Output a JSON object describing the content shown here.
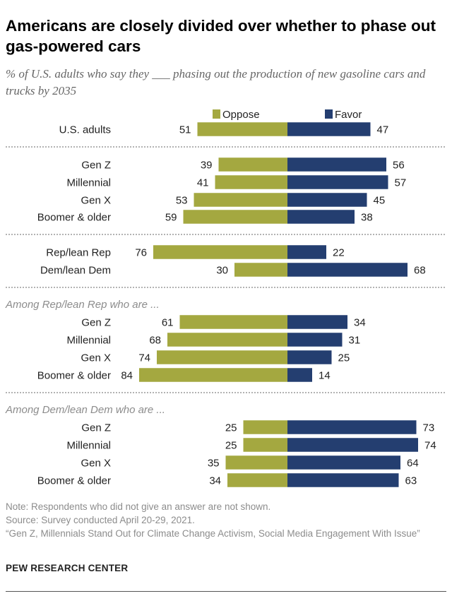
{
  "title": "Americans are closely divided over whether to phase out gas-powered cars",
  "subtitle": "% of U.S. adults who say they ___ phasing out the production of new gasoline cars and trucks by 2035",
  "colors": {
    "oppose": "#a4a840",
    "favor": "#243e70"
  },
  "chart_data": {
    "type": "bar",
    "orientation": "horizontal-diverging",
    "legend": {
      "position": "top",
      "entries": [
        "Oppose",
        "Favor"
      ]
    },
    "series": [
      {
        "name": "Oppose",
        "color": "#a4a840"
      },
      {
        "name": "Favor",
        "color": "#243e70"
      }
    ],
    "groups": [
      {
        "header": "",
        "rows": [
          {
            "label": "U.S. adults",
            "oppose": 51,
            "favor": 47
          }
        ]
      },
      {
        "header": "",
        "rows": [
          {
            "label": "Gen Z",
            "oppose": 39,
            "favor": 56
          },
          {
            "label": "Millennial",
            "oppose": 41,
            "favor": 57
          },
          {
            "label": "Gen X",
            "oppose": 53,
            "favor": 45
          },
          {
            "label": "Boomer & older",
            "oppose": 59,
            "favor": 38
          }
        ]
      },
      {
        "header": "",
        "rows": [
          {
            "label": "Rep/lean Rep",
            "oppose": 76,
            "favor": 22
          },
          {
            "label": "Dem/lean Dem",
            "oppose": 30,
            "favor": 68
          }
        ]
      },
      {
        "header": "Among Rep/lean Rep who are ...",
        "rows": [
          {
            "label": "Gen Z",
            "oppose": 61,
            "favor": 34
          },
          {
            "label": "Millennial",
            "oppose": 68,
            "favor": 31
          },
          {
            "label": "Gen X",
            "oppose": 74,
            "favor": 25
          },
          {
            "label": "Boomer & older",
            "oppose": 84,
            "favor": 14
          }
        ]
      },
      {
        "header": "Among Dem/lean Dem who are ...",
        "rows": [
          {
            "label": "Gen Z",
            "oppose": 25,
            "favor": 73
          },
          {
            "label": "Millennial",
            "oppose": 25,
            "favor": 74
          },
          {
            "label": "Gen X",
            "oppose": 35,
            "favor": 64
          },
          {
            "label": "Boomer & older",
            "oppose": 34,
            "favor": 63
          }
        ]
      }
    ]
  },
  "footer": {
    "note": "Note: Respondents who did not give an answer are not shown.",
    "source": "Source: Survey conducted April 20-29, 2021.",
    "report": "“Gen Z, Millennials Stand Out for Climate Change Activism, Social Media Engagement With Issue”",
    "brand": "PEW RESEARCH CENTER"
  }
}
